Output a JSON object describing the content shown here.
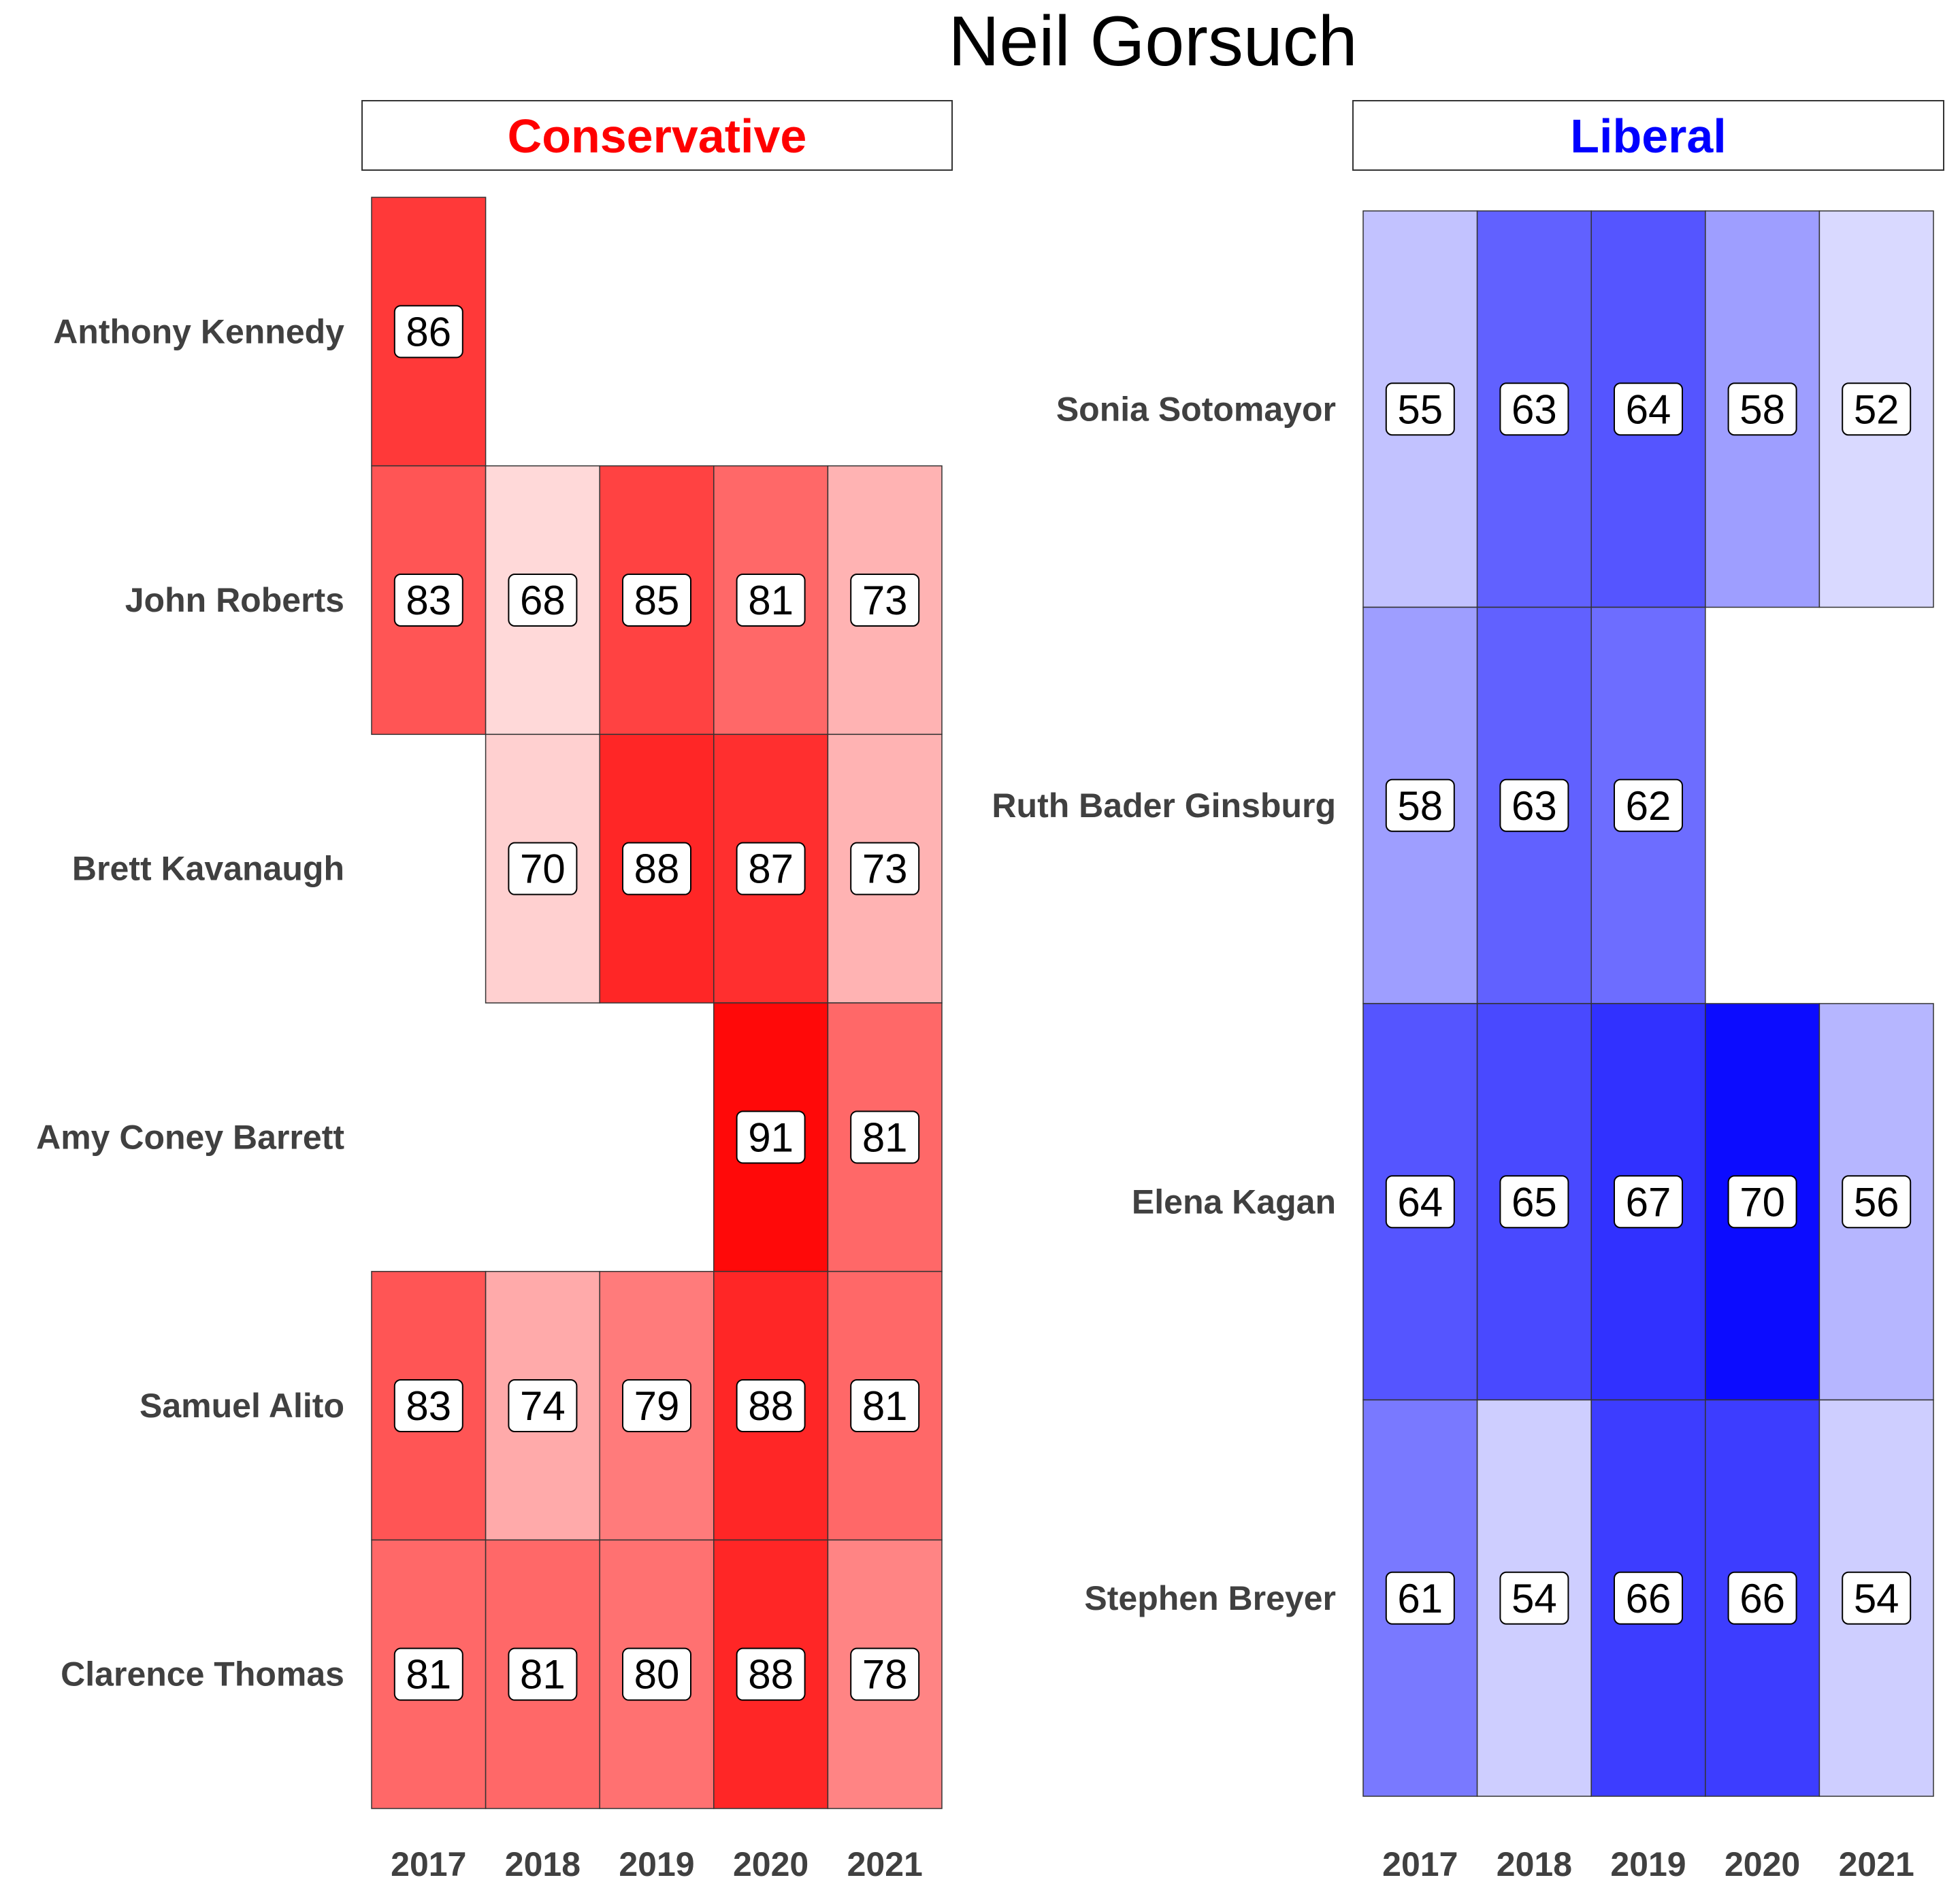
{
  "title": "Neil Gorsuch",
  "chart_data": [
    {
      "type": "heatmap",
      "panel": "Conservative",
      "title": "Conservative",
      "title_color": "#ff0000",
      "fill_color": "#ff0000",
      "x": [
        "2017",
        "2018",
        "2019",
        "2020",
        "2021"
      ],
      "y": [
        "Anthony Kennedy",
        "John Roberts",
        "Brett Kavanaugh",
        "Amy Coney Barrett",
        "Samuel Alito",
        "Clarence Thomas"
      ],
      "values": [
        [
          86,
          null,
          null,
          null,
          null
        ],
        [
          83,
          68,
          85,
          81,
          73
        ],
        [
          null,
          70,
          88,
          87,
          73
        ],
        [
          null,
          null,
          null,
          91,
          81
        ],
        [
          83,
          74,
          79,
          88,
          81
        ],
        [
          81,
          81,
          80,
          88,
          78
        ]
      ]
    },
    {
      "type": "heatmap",
      "panel": "Liberal",
      "title": "Liberal",
      "title_color": "#0000ff",
      "fill_color": "#0000ff",
      "x": [
        "2017",
        "2018",
        "2019",
        "2020",
        "2021"
      ],
      "y": [
        "Sonia Sotomayor",
        "Ruth Bader Ginsburg",
        "Elena Kagan",
        "Stephen Breyer"
      ],
      "values": [
        [
          55,
          63,
          64,
          58,
          52
        ],
        [
          58,
          63,
          62,
          null,
          null
        ],
        [
          64,
          65,
          67,
          70,
          56
        ],
        [
          61,
          54,
          66,
          66,
          54
        ]
      ]
    }
  ]
}
